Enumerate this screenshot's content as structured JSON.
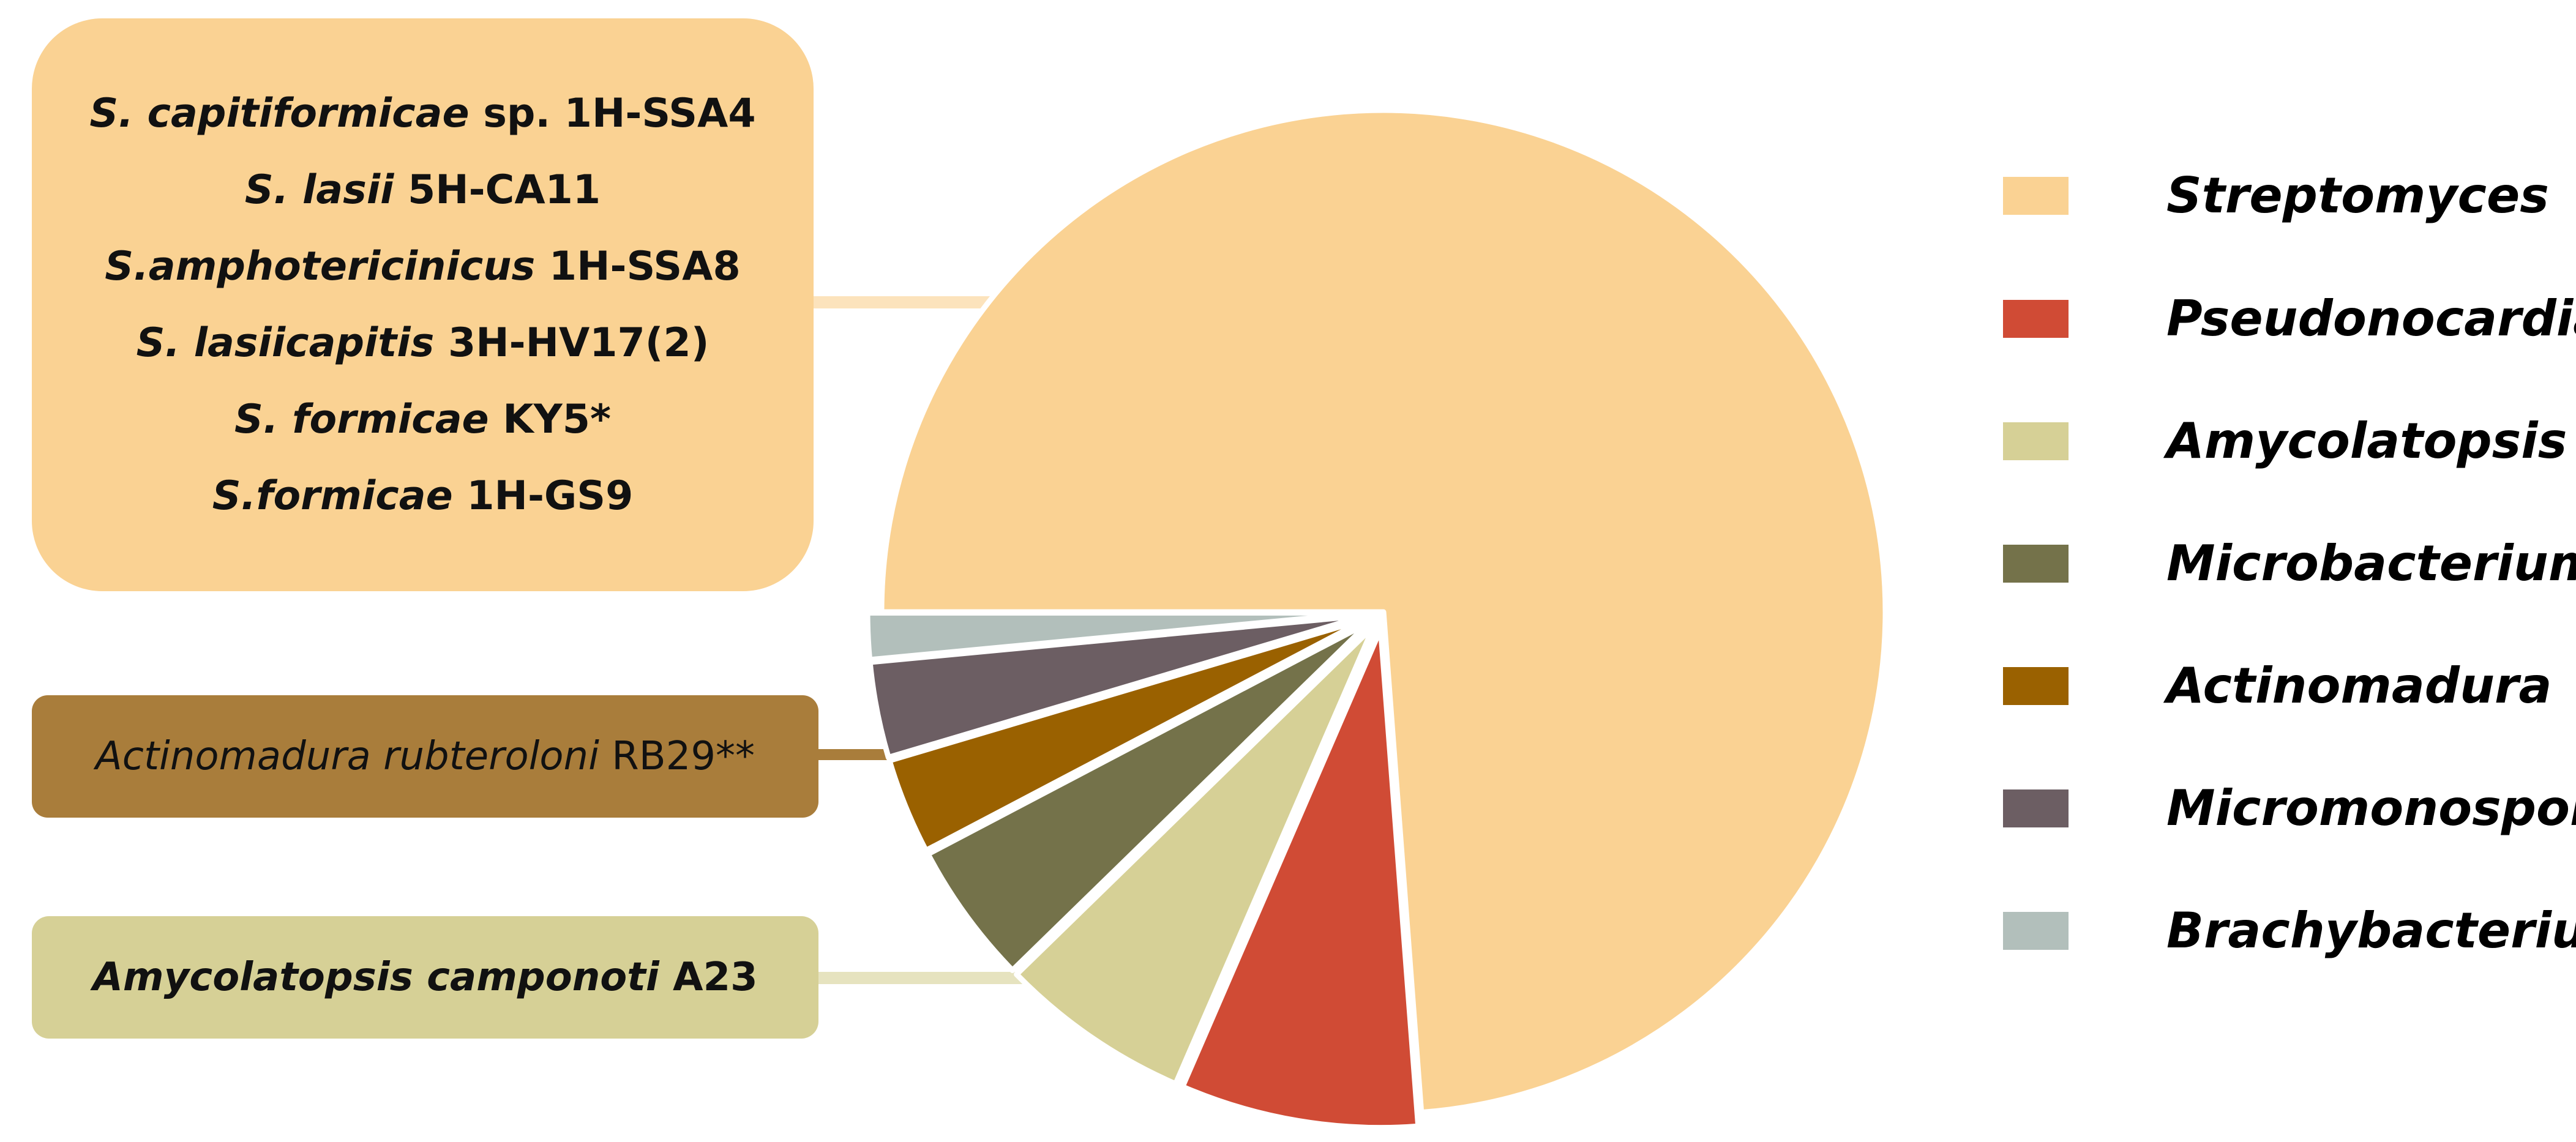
{
  "chart_data": {
    "type": "pie",
    "title": "",
    "start_angle_deg": 180,
    "direction": "clockwise",
    "slices": [
      {
        "label": "Streptomyces",
        "value": 73.8,
        "color": "#FAD293"
      },
      {
        "label": "Pseudonocardia",
        "value": 7.7,
        "color": "#D04B35"
      },
      {
        "label": "Amycolatopsis",
        "value": 6.2,
        "color": "#D6D096"
      },
      {
        "label": "Microbacterium",
        "value": 4.6,
        "color": "#74724A"
      },
      {
        "label": "Actinomadura",
        "value": 3.1,
        "color": "#9A6100"
      },
      {
        "label": "Micromonospora",
        "value": 3.1,
        "color": "#6C5E63"
      },
      {
        "label": "Brachybacterium",
        "value": 1.5,
        "color": "#B2BFBB"
      }
    ],
    "legend_position": "right"
  },
  "callouts": {
    "streptomyces": {
      "color": "#FAD293",
      "leader_color": "#FCE3BC",
      "lines": [
        {
          "species": "S. capitiformicae",
          "strain": "sp. 1H-SSA4"
        },
        {
          "species": "S. lasii",
          "strain": "5H-CA11"
        },
        {
          "species": "S.amphotericinicus",
          "strain": "1H-SSA8"
        },
        {
          "species": "S. lasiicapitis",
          "strain": "3H-HV17(2)"
        },
        {
          "species": "S. formicae",
          "strain": "KY5*"
        },
        {
          "species": "S.formicae",
          "strain": "1H-GS9"
        }
      ]
    },
    "actinomadura": {
      "color": "#A97D3B",
      "leader_color": "#A97D3B",
      "species": "Actinomadura rubteroloni",
      "strain": "RB29**"
    },
    "amycolatopsis": {
      "color": "#D6D096",
      "leader_color": "#E6E3BF",
      "species": "Amycolatopsis camponoti",
      "strain": "A23"
    }
  }
}
